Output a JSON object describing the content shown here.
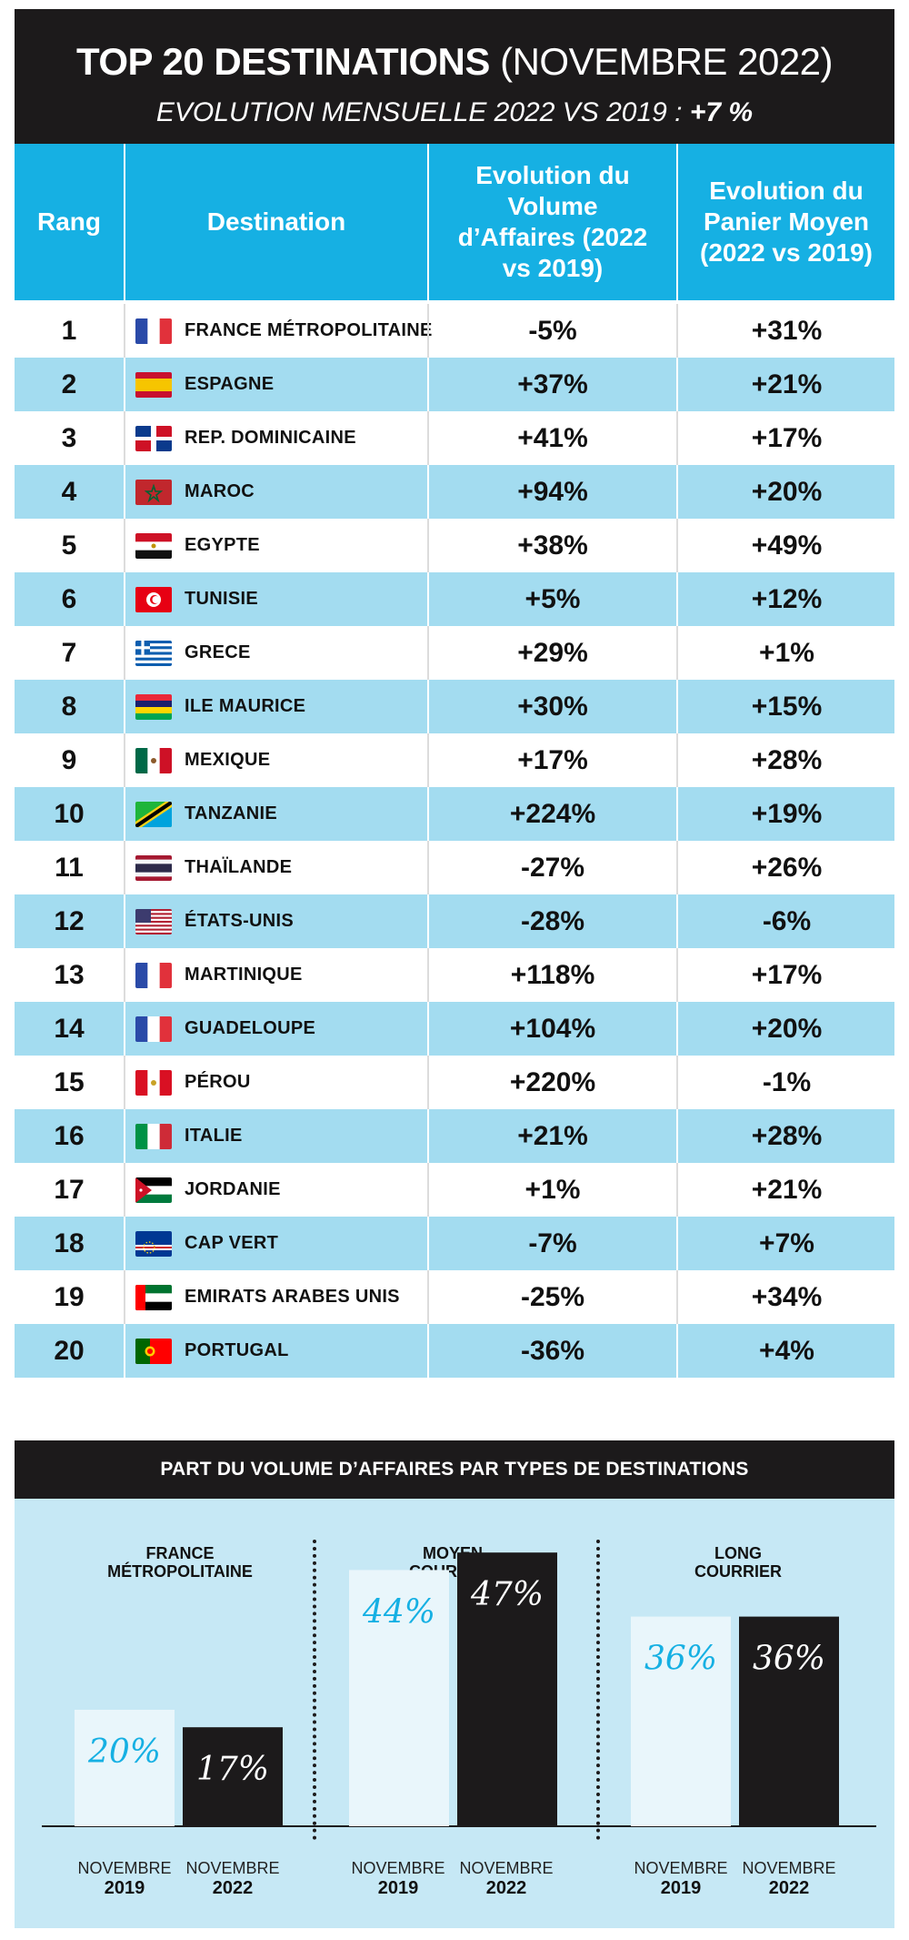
{
  "header": {
    "title_bold": "TOP 20 DESTINATIONS",
    "title_light": "(NOVEMBRE 2022)",
    "subtitle_text": "EVOLUTION MENSUELLE 2022 VS 2019 :",
    "subtitle_value": "+7 %"
  },
  "table": {
    "headers": {
      "rank": "Rang",
      "destination": "Destination",
      "volume": "Evolution du Volume d’Affaires (2022 vs 2019)",
      "panier": "Evolution du Panier Moyen (2022 vs 2019)"
    },
    "rows": [
      {
        "rank": "1",
        "destination": "FRANCE MÉTROPOLITAINE",
        "volume": "-5%",
        "panier": "+31%",
        "flag": "france"
      },
      {
        "rank": "2",
        "destination": "ESPAGNE",
        "volume": "+37%",
        "panier": "+21%",
        "flag": "spain"
      },
      {
        "rank": "3",
        "destination": "REP. DOMINICAINE",
        "volume": "+41%",
        "panier": "+17%",
        "flag": "dominican"
      },
      {
        "rank": "4",
        "destination": "MAROC",
        "volume": "+94%",
        "panier": "+20%",
        "flag": "morocco"
      },
      {
        "rank": "5",
        "destination": "EGYPTE",
        "volume": "+38%",
        "panier": "+49%",
        "flag": "egypt"
      },
      {
        "rank": "6",
        "destination": "TUNISIE",
        "volume": "+5%",
        "panier": "+12%",
        "flag": "tunisia"
      },
      {
        "rank": "7",
        "destination": "GRECE",
        "volume": "+29%",
        "panier": "+1%",
        "flag": "greece"
      },
      {
        "rank": "8",
        "destination": "ILE MAURICE",
        "volume": "+30%",
        "panier": "+15%",
        "flag": "mauritius"
      },
      {
        "rank": "9",
        "destination": "MEXIQUE",
        "volume": "+17%",
        "panier": "+28%",
        "flag": "mexico"
      },
      {
        "rank": "10",
        "destination": "TANZANIE",
        "volume": "+224%",
        "panier": "+19%",
        "flag": "tanzania"
      },
      {
        "rank": "11",
        "destination": "THAÏLANDE",
        "volume": "-27%",
        "panier": "+26%",
        "flag": "thailand"
      },
      {
        "rank": "12",
        "destination": "ÉTATS-UNIS",
        "volume": "-28%",
        "panier": "-6%",
        "flag": "usa"
      },
      {
        "rank": "13",
        "destination": "MARTINIQUE",
        "volume": "+118%",
        "panier": "+17%",
        "flag": "france"
      },
      {
        "rank": "14",
        "destination": "GUADELOUPE",
        "volume": "+104%",
        "panier": "+20%",
        "flag": "france"
      },
      {
        "rank": "15",
        "destination": "PÉROU",
        "volume": "+220%",
        "panier": "-1%",
        "flag": "peru"
      },
      {
        "rank": "16",
        "destination": "ITALIE",
        "volume": "+21%",
        "panier": "+28%",
        "flag": "italy"
      },
      {
        "rank": "17",
        "destination": "JORDANIE",
        "volume": "+1%",
        "panier": "+21%",
        "flag": "jordan"
      },
      {
        "rank": "18",
        "destination": "CAP VERT",
        "volume": "-7%",
        "panier": "+7%",
        "flag": "capeverde"
      },
      {
        "rank": "19",
        "destination": "EMIRATS ARABES UNIS",
        "volume": "-25%",
        "panier": "+34%",
        "flag": "uae"
      },
      {
        "rank": "20",
        "destination": "PORTUGAL",
        "volume": "-36%",
        "panier": "+4%",
        "flag": "portugal"
      }
    ]
  },
  "section2": {
    "title": "PART DU VOLUME D’AFFAIRES PAR TYPES DE DESTINATIONS",
    "groups": [
      {
        "title_line1": "FRANCE",
        "title_line2": "MÉTROPOLITAINE"
      },
      {
        "title_line1": "MOYEN",
        "title_line2": "COURRIER"
      },
      {
        "title_line1": "LONG",
        "title_line2": "COURRIER"
      }
    ],
    "x_month": "NOVEMBRE",
    "years": [
      "2019",
      "2022"
    ]
  },
  "chart_data": {
    "type": "bar",
    "title": "PART DU VOLUME D’AFFAIRES PAR TYPES DE DESTINATIONS",
    "categories": [
      "FRANCE MÉTROPOLITAINE",
      "MOYEN COURRIER",
      "LONG COURRIER"
    ],
    "series": [
      {
        "name": "NOVEMBRE 2019",
        "values": [
          20,
          44,
          36
        ],
        "labels": [
          "20%",
          "44%",
          "36%"
        ],
        "color": "#e9f6fb",
        "label_color": "#16b0e3"
      },
      {
        "name": "NOVEMBRE 2022",
        "values": [
          17,
          47,
          36
        ],
        "labels": [
          "17%",
          "47%",
          "36%"
        ],
        "color": "#1c1a1b",
        "label_color": "#ffffff"
      }
    ],
    "ylim": [
      0,
      60
    ],
    "legend": "none",
    "grid": false
  },
  "colors": {
    "header_bg": "#1c1a1b",
    "table_head_bg": "#16b0e3",
    "row_alt_bg": "#a3dcf0",
    "panel_bg": "#c6e8f5"
  }
}
